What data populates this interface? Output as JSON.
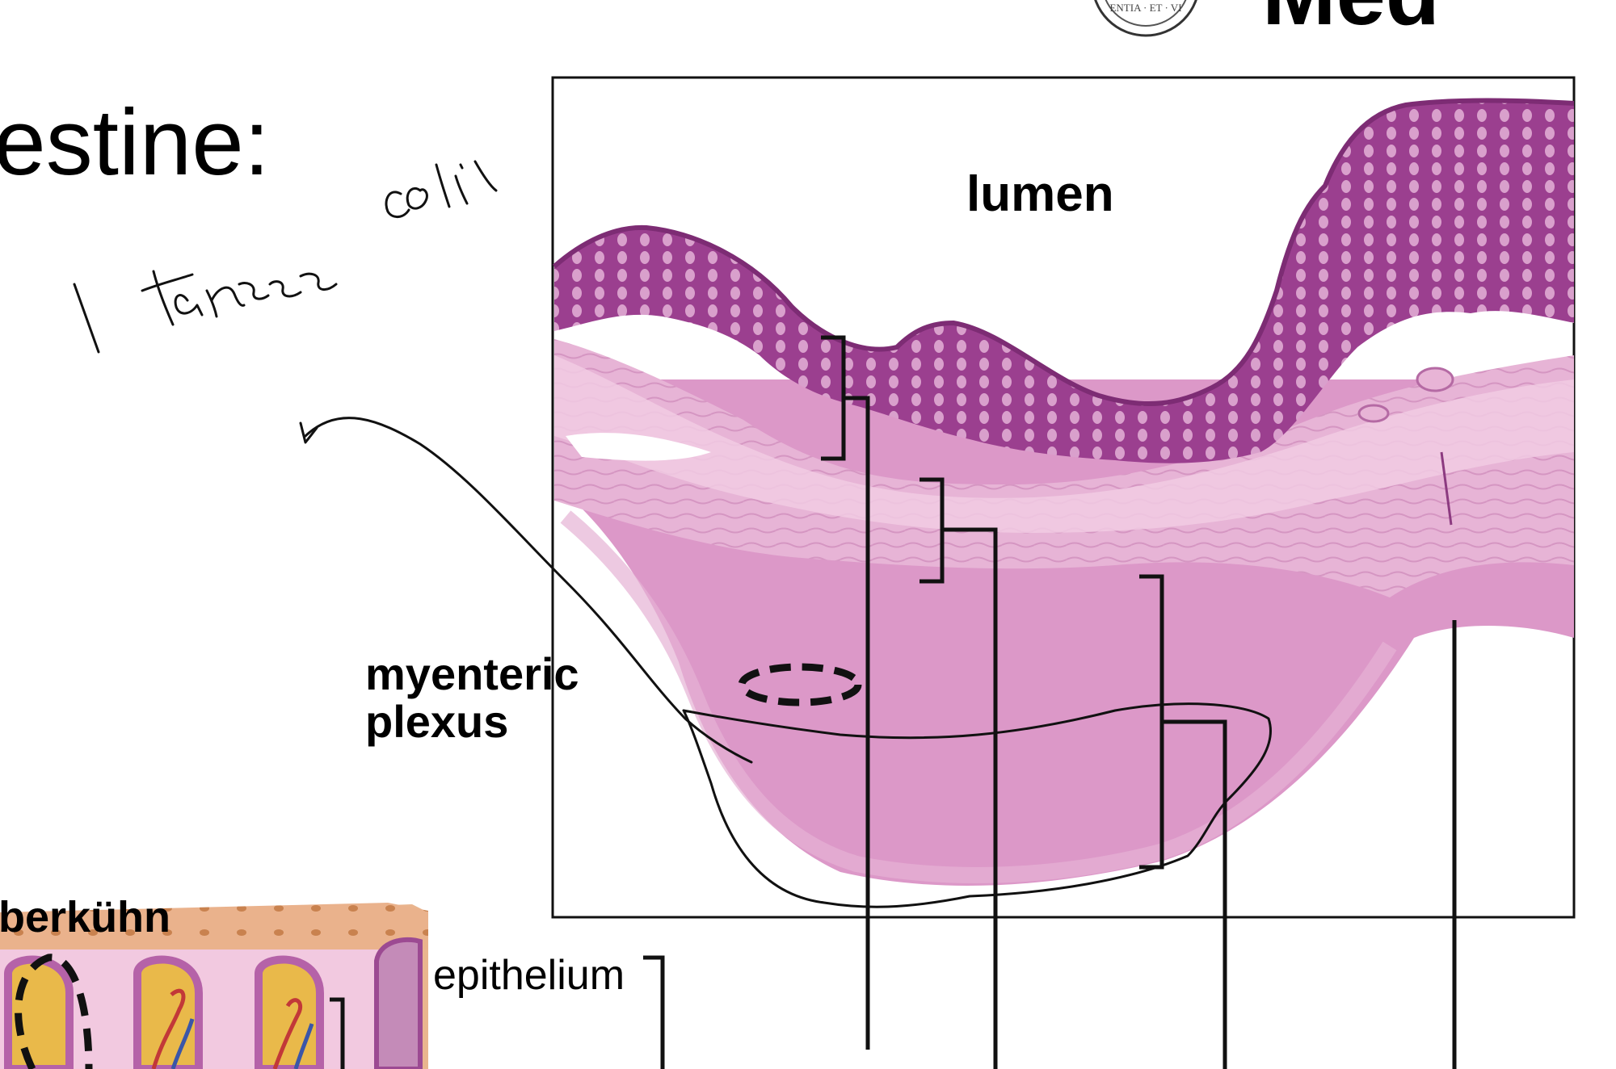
{
  "slide": {
    "title": "testine:",
    "logo_text": "Med",
    "logo_seal": "ENTIA · ET · VI"
  },
  "histology": {
    "lumen_label": "lumen",
    "myenteric_label_line1": "myenteric",
    "myenteric_label_line2": "plexus"
  },
  "diagram": {
    "crypt_label": "berkühn",
    "epithelium_label": "epithelium"
  },
  "handwriting": {
    "note": "1 tarnee coli"
  },
  "colors": {
    "tissue_light": "#efc0dc",
    "tissue_mid": "#dc98c8",
    "mucosa_dark": "#9b3f8f",
    "ink": "#000000",
    "diagram_skin": "#e8b48e"
  }
}
